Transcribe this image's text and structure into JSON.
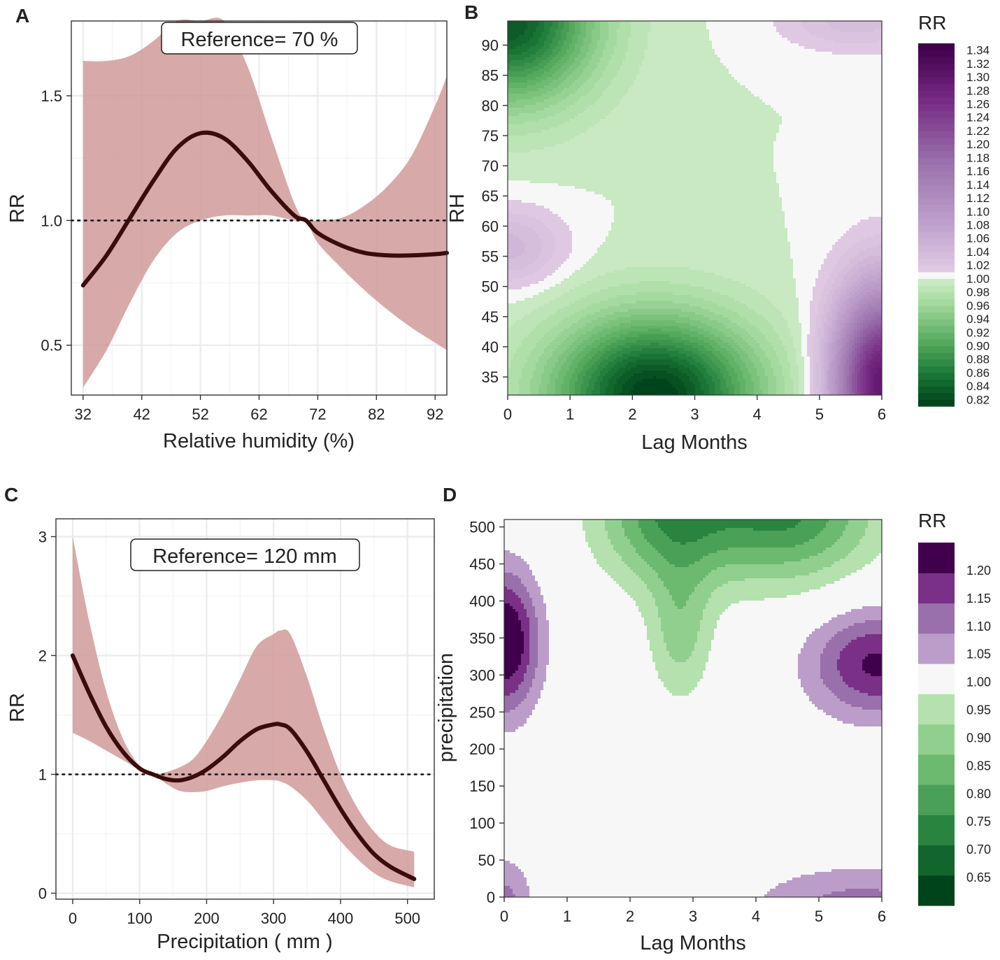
{
  "colors": {
    "band": "#d19a9a",
    "line": "#3b0c0c",
    "grid": "#ebebeb",
    "frame": "#333333",
    "div_purple_dark": "#40004b",
    "div_purple_light": "#f4e8f4",
    "div_neutral": "#f7f7f7",
    "div_green_light": "#e6f5e0",
    "div_green_dark": "#00441b"
  },
  "chart_data": [
    {
      "panel": "A",
      "type": "line",
      "title": "",
      "xlabel": "Relative humidity (%)",
      "ylabel": "RR",
      "annotation": "Reference= 70 %",
      "xlim": [
        30,
        94
      ],
      "ylim": [
        0.3,
        1.8
      ],
      "xticks": [
        32,
        42,
        52,
        62,
        72,
        82,
        92
      ],
      "xtick_labels": [
        "32",
        "42",
        "52",
        "62",
        "72",
        "82",
        "92"
      ],
      "yticks": [
        0.5,
        1.0,
        1.5
      ],
      "ytick_labels": [
        "0.5",
        "1.0",
        "1.5"
      ],
      "reference_y": 1.0,
      "x": [
        32,
        36,
        40,
        44,
        48,
        52,
        56,
        60,
        64,
        68,
        70,
        72,
        76,
        80,
        84,
        88,
        92,
        94
      ],
      "y": [
        0.74,
        0.86,
        1.01,
        1.16,
        1.29,
        1.35,
        1.33,
        1.24,
        1.12,
        1.02,
        1.0,
        0.95,
        0.9,
        0.87,
        0.86,
        0.86,
        0.865,
        0.87
      ],
      "lower": [
        0.33,
        0.48,
        0.67,
        0.84,
        0.95,
        1.0,
        1.02,
        1.02,
        1.02,
        1.0,
        1.0,
        0.91,
        0.81,
        0.72,
        0.64,
        0.57,
        0.51,
        0.48
      ],
      "upper": [
        1.64,
        1.64,
        1.66,
        1.72,
        1.8,
        1.8,
        1.8,
        1.62,
        1.34,
        1.07,
        1.0,
        1.0,
        1.01,
        1.06,
        1.14,
        1.26,
        1.46,
        1.58
      ]
    },
    {
      "panel": "B",
      "type": "heatmap",
      "xlabel": "Lag Months",
      "ylabel": "RH",
      "xlim": [
        0,
        6
      ],
      "ylim": [
        32,
        94
      ],
      "xticks": [
        0,
        1,
        2,
        3,
        4,
        5,
        6
      ],
      "xtick_labels": [
        "0",
        "1",
        "2",
        "3",
        "4",
        "5",
        "6"
      ],
      "yticks": [
        35,
        40,
        45,
        50,
        55,
        60,
        65,
        70,
        75,
        80,
        85,
        90
      ],
      "ytick_labels": [
        "35",
        "40",
        "45",
        "50",
        "55",
        "60",
        "65",
        "70",
        "75",
        "80",
        "85",
        "90"
      ],
      "legend_title": "RR",
      "legend_breaks": [
        0.81,
        0.82,
        0.83,
        0.84,
        0.85,
        0.86,
        0.87,
        0.88,
        0.89,
        0.9,
        0.91,
        0.92,
        0.93,
        0.94,
        0.95,
        0.96,
        0.97,
        0.98,
        0.99,
        1.0,
        1.01,
        1.02,
        1.03,
        1.04,
        1.05,
        1.06,
        1.07,
        1.08,
        1.09,
        1.1,
        1.11,
        1.12,
        1.13,
        1.14,
        1.15,
        1.16,
        1.17,
        1.18,
        1.19,
        1.2,
        1.21,
        1.22,
        1.23,
        1.24,
        1.25,
        1.26,
        1.27,
        1.28,
        1.29,
        1.3,
        1.31,
        1.32,
        1.33,
        1.34,
        1.35
      ],
      "legend_labels": [
        "0.82",
        "0.84",
        "0.86",
        "0.88",
        "0.90",
        "0.92",
        "0.94",
        "0.96",
        "0.98",
        "1.00",
        "1.02",
        "1.04",
        "1.06",
        "1.08",
        "1.10",
        "1.12",
        "1.14",
        "1.16",
        "1.18",
        "1.20",
        "1.22",
        "1.24",
        "1.26",
        "1.28",
        "1.30",
        "1.32",
        "1.34"
      ],
      "legend_label_values": [
        0.82,
        0.84,
        0.86,
        0.88,
        0.9,
        0.92,
        0.94,
        0.96,
        0.98,
        1.0,
        1.02,
        1.04,
        1.06,
        1.08,
        1.1,
        1.12,
        1.14,
        1.16,
        1.18,
        1.2,
        1.22,
        1.24,
        1.26,
        1.28,
        1.3,
        1.32,
        1.34
      ],
      "features": [
        {
          "cx": 2.35,
          "cy": 32.0,
          "sx": 1.6,
          "sy": 12.5,
          "amp": -0.19
        },
        {
          "cx": 0.0,
          "cy": 94.0,
          "sx": 1.35,
          "sy": 13.0,
          "amp": -0.17
        },
        {
          "cx": 6.0,
          "cy": 34.0,
          "sx": 0.75,
          "sy": 15.0,
          "amp": 0.3
        },
        {
          "cx": 0.0,
          "cy": 56.5,
          "sx": 0.9,
          "sy": 6.5,
          "amp": 0.045
        },
        {
          "cx": 5.6,
          "cy": 94.0,
          "sx": 1.2,
          "sy": 5.0,
          "amp": 0.035
        }
      ]
    },
    {
      "panel": "C",
      "type": "line",
      "title": "",
      "xlabel": "Precipitation ( mm )",
      "ylabel": "RR",
      "annotation": "Reference= 120 mm",
      "xlim": [
        -25,
        540
      ],
      "ylim": [
        -0.05,
        3.15
      ],
      "xticks": [
        0,
        100,
        200,
        300,
        400,
        500
      ],
      "xtick_labels": [
        "0",
        "100",
        "200",
        "300",
        "400",
        "500"
      ],
      "yticks": [
        0,
        1,
        2,
        3
      ],
      "ytick_labels": [
        "0",
        "1",
        "2",
        "3"
      ],
      "reference_y": 1.0,
      "x": [
        0,
        25,
        50,
        75,
        100,
        120,
        140,
        160,
        180,
        200,
        225,
        250,
        275,
        300,
        310,
        325,
        350,
        375,
        400,
        425,
        450,
        475,
        510
      ],
      "y": [
        2.0,
        1.68,
        1.4,
        1.19,
        1.05,
        1.0,
        0.96,
        0.95,
        0.98,
        1.04,
        1.15,
        1.28,
        1.38,
        1.42,
        1.42,
        1.38,
        1.19,
        0.95,
        0.71,
        0.5,
        0.33,
        0.22,
        0.12
      ],
      "lower": [
        1.35,
        1.28,
        1.2,
        1.12,
        1.04,
        1.0,
        0.92,
        0.86,
        0.85,
        0.86,
        0.9,
        0.93,
        0.95,
        0.95,
        0.94,
        0.9,
        0.78,
        0.61,
        0.44,
        0.29,
        0.17,
        0.1,
        0.05
      ],
      "upper": [
        3.0,
        2.28,
        1.7,
        1.3,
        1.07,
        1.0,
        1.02,
        1.06,
        1.13,
        1.28,
        1.52,
        1.8,
        2.08,
        2.18,
        2.21,
        2.18,
        1.82,
        1.38,
        1.0,
        0.72,
        0.52,
        0.4,
        0.35
      ]
    },
    {
      "panel": "D",
      "type": "heatmap",
      "xlabel": "Lag Months",
      "ylabel": "precipitation",
      "xlim": [
        0,
        6
      ],
      "ylim": [
        0,
        510
      ],
      "xticks": [
        0,
        1,
        2,
        3,
        4,
        5,
        6
      ],
      "xtick_labels": [
        "0",
        "1",
        "2",
        "3",
        "4",
        "5",
        "6"
      ],
      "yticks": [
        0,
        50,
        100,
        150,
        200,
        250,
        300,
        350,
        400,
        450,
        500
      ],
      "ytick_labels": [
        "0",
        "50",
        "100",
        "150",
        "200",
        "250",
        "300",
        "350",
        "400",
        "450",
        "500"
      ],
      "legend_title": "RR",
      "legend_breaks": [
        0.6,
        0.65,
        0.7,
        0.75,
        0.8,
        0.85,
        0.9,
        0.95,
        1.05,
        1.1,
        1.15,
        1.2,
        1.25
      ],
      "legend_labels": [
        "0.65",
        "0.70",
        "0.75",
        "0.80",
        "0.85",
        "0.90",
        "0.95",
        "1.00",
        "1.05",
        "1.10",
        "1.15",
        "1.20"
      ],
      "legend_label_values": [
        0.65,
        0.7,
        0.75,
        0.8,
        0.85,
        0.9,
        0.95,
        1.0,
        1.05,
        1.1,
        1.15,
        1.2
      ],
      "features": [
        {
          "cx": 2.6,
          "cy": 520,
          "sx": 1.1,
          "sy": 95,
          "amp": -0.23
        },
        {
          "cx": 4.5,
          "cy": 525,
          "sx": 1.35,
          "sy": 95,
          "amp": -0.26
        },
        {
          "cx": 2.8,
          "cy": 360,
          "sx": 0.5,
          "sy": 95,
          "amp": -0.12
        },
        {
          "cx": 0.0,
          "cy": 345,
          "sx": 0.55,
          "sy": 95,
          "amp": 0.27
        },
        {
          "cx": 5.9,
          "cy": 315,
          "sx": 1.05,
          "sy": 72,
          "amp": 0.21
        },
        {
          "cx": 5.7,
          "cy": -20,
          "sx": 1.75,
          "sy": 60,
          "amp": 0.13
        },
        {
          "cx": 0.0,
          "cy": -10,
          "sx": 0.45,
          "sy": 62,
          "amp": 0.12
        }
      ]
    }
  ]
}
